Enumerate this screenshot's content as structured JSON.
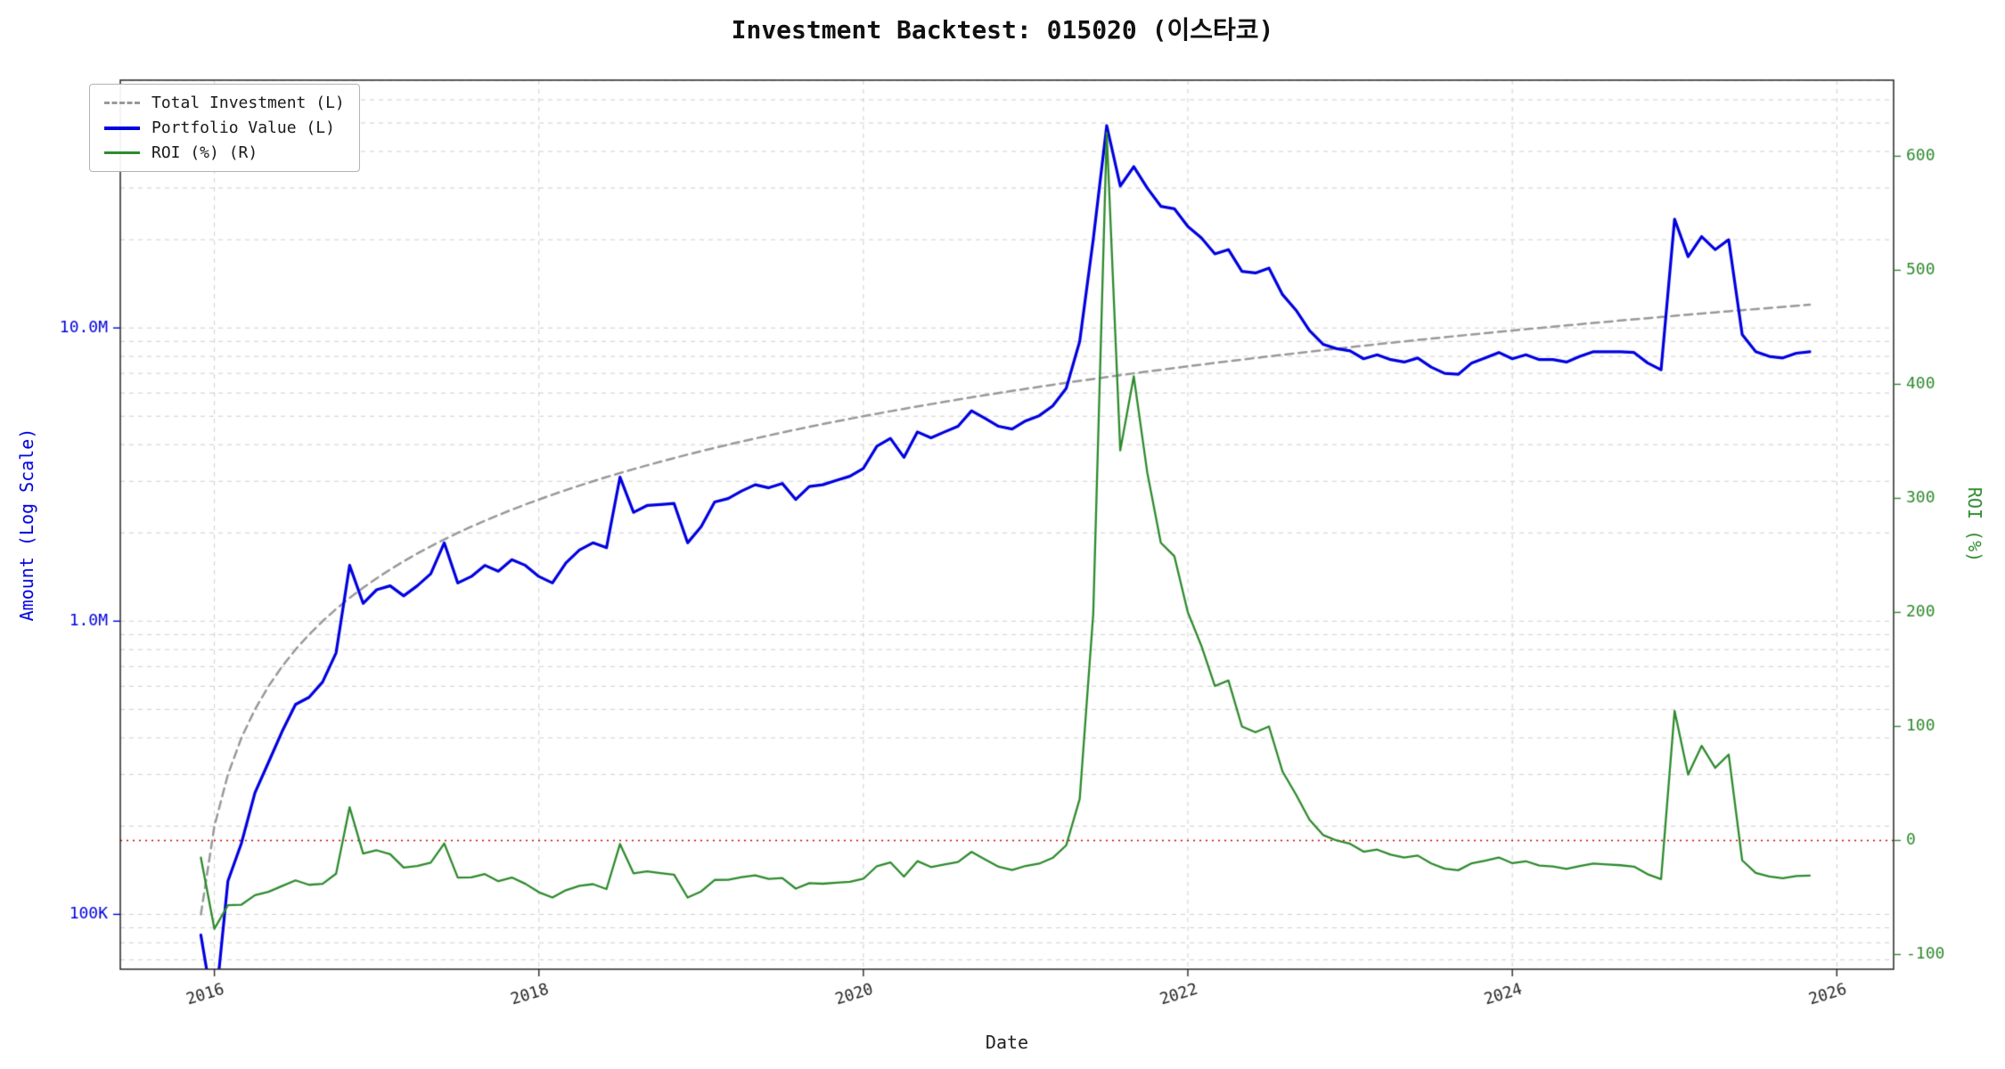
{
  "chart_data": {
    "type": "line",
    "title": "Investment Backtest: 015020 (이스타코)",
    "xlabel": "Date",
    "ylabel_left": "Amount (Log Scale)",
    "ylabel_right": "ROI (%)",
    "x_start": 2015.9167,
    "x_step": 0.0833333,
    "xlim": [
      2015.42,
      2026.35
    ],
    "ylim_left": [
      0.065,
      70
    ],
    "ylim_right": [
      -112.9,
      666.7
    ],
    "left_axis_units": "millions (log scale)",
    "grid": "on",
    "grid_color": "#cfcfcf",
    "axis_left_color": "#0000e0",
    "axis_right_color": "#2e8b2e",
    "spine_color": "#262626",
    "x_tick_color": "#262626",
    "zero_line": {
      "value": 0,
      "color": "#cc0000"
    },
    "legend_position": "upper-left",
    "x_ticks": [
      {
        "value": 2016,
        "label": "2016"
      },
      {
        "value": 2018,
        "label": "2018"
      },
      {
        "value": 2020,
        "label": "2020"
      },
      {
        "value": 2022,
        "label": "2022"
      },
      {
        "value": 2024,
        "label": "2024"
      },
      {
        "value": 2026,
        "label": "2026"
      }
    ],
    "left_ticks": [
      {
        "value": 0.1,
        "label": "100K"
      },
      {
        "value": 1.0,
        "label": "1.0M"
      },
      {
        "value": 10.0,
        "label": "10.0M"
      }
    ],
    "right_ticks": [
      {
        "value": -100,
        "label": "-100"
      },
      {
        "value": 0,
        "label": "0"
      },
      {
        "value": 100,
        "label": "100"
      },
      {
        "value": 200,
        "label": "200"
      },
      {
        "value": 300,
        "label": "300"
      },
      {
        "value": 400,
        "label": "400"
      },
      {
        "value": 500,
        "label": "500"
      },
      {
        "value": 600,
        "label": "600"
      }
    ],
    "series": [
      {
        "name": "Total Investment (L)",
        "axis": "left",
        "color": "#999999",
        "dash": [
          9,
          6
        ],
        "width": 2.5,
        "values": [
          0.1,
          0.2,
          0.3,
          0.4,
          0.5,
          0.6,
          0.7,
          0.8,
          0.9,
          1.0,
          1.1,
          1.2,
          1.3,
          1.4,
          1.5,
          1.6,
          1.7,
          1.8,
          1.9,
          2.0,
          2.1,
          2.2,
          2.3,
          2.4,
          2.5,
          2.6,
          2.7,
          2.8,
          2.9,
          3.0,
          3.1,
          3.2,
          3.3,
          3.4,
          3.5,
          3.6,
          3.7,
          3.8,
          3.9,
          4.0,
          4.1,
          4.2,
          4.3,
          4.4,
          4.5,
          4.6,
          4.7,
          4.8,
          4.9,
          5.0,
          5.1,
          5.2,
          5.3,
          5.4,
          5.5,
          5.6,
          5.7,
          5.8,
          5.9,
          6.0,
          6.1,
          6.2,
          6.3,
          6.4,
          6.5,
          6.6,
          6.7,
          6.8,
          6.9,
          7.0,
          7.1,
          7.2,
          7.3,
          7.4,
          7.5,
          7.6,
          7.7,
          7.8,
          7.9,
          8.0,
          8.1,
          8.2,
          8.3,
          8.4,
          8.5,
          8.6,
          8.7,
          8.8,
          8.9,
          9.0,
          9.1,
          9.2,
          9.3,
          9.4,
          9.5,
          9.6,
          9.7,
          9.8,
          9.9,
          10.0,
          10.1,
          10.2,
          10.3,
          10.4,
          10.5,
          10.6,
          10.7,
          10.8,
          10.9,
          11.0,
          11.1,
          11.2,
          11.3,
          11.4,
          11.5,
          11.6,
          11.7,
          11.8,
          11.9,
          12.0
        ]
      },
      {
        "name": "Portfolio Value (L)",
        "axis": "left",
        "color": "#0000e0",
        "dash": [],
        "width": 3.2,
        "values": [
          0.085,
          0.045,
          0.13,
          0.175,
          0.26,
          0.33,
          0.42,
          0.52,
          0.55,
          0.62,
          0.78,
          1.55,
          1.15,
          1.28,
          1.32,
          1.22,
          1.32,
          1.45,
          1.85,
          1.35,
          1.42,
          1.55,
          1.48,
          1.62,
          1.55,
          1.42,
          1.35,
          1.58,
          1.75,
          1.85,
          1.78,
          3.1,
          2.35,
          2.48,
          2.5,
          2.52,
          1.85,
          2.1,
          2.55,
          2.62,
          2.78,
          2.92,
          2.85,
          2.95,
          2.6,
          2.88,
          2.92,
          3.02,
          3.12,
          3.32,
          3.95,
          4.2,
          3.62,
          4.42,
          4.22,
          4.42,
          4.62,
          5.22,
          4.92,
          4.62,
          4.52,
          4.82,
          5.02,
          5.42,
          6.22,
          9.0,
          20.0,
          49.0,
          30.5,
          35.5,
          30.0,
          26.0,
          25.5,
          22.2,
          20.3,
          17.9,
          18.5,
          15.6,
          15.4,
          16.0,
          13.0,
          11.5,
          9.8,
          8.8,
          8.5,
          8.35,
          7.85,
          8.1,
          7.8,
          7.65,
          7.9,
          7.35,
          7.0,
          6.95,
          7.6,
          7.9,
          8.25,
          7.85,
          8.1,
          7.8,
          7.8,
          7.65,
          8.0,
          8.3,
          8.3,
          8.3,
          8.25,
          7.6,
          7.2,
          23.5,
          17.5,
          20.5,
          18.5,
          20.0,
          9.5,
          8.3,
          8.0,
          7.9,
          8.2,
          8.3
        ]
      },
      {
        "name": "ROI (%) (R)",
        "axis": "right",
        "color": "#2e8b2e",
        "dash": [],
        "width": 2.3,
        "values": [
          -15.0,
          -77.5,
          -56.7,
          -56.3,
          -48.0,
          -45.0,
          -40.0,
          -35.0,
          -38.9,
          -38.0,
          -29.1,
          29.2,
          -11.5,
          -8.6,
          -12.0,
          -23.8,
          -22.4,
          -19.4,
          -2.6,
          -32.5,
          -32.4,
          -29.5,
          -35.7,
          -32.5,
          -38.0,
          -45.4,
          -50.0,
          -43.6,
          -39.7,
          -38.3,
          -42.6,
          -3.1,
          -28.8,
          -27.1,
          -28.6,
          -30.0,
          -50.0,
          -44.7,
          -34.6,
          -34.5,
          -32.2,
          -30.5,
          -33.7,
          -33.0,
          -42.2,
          -37.4,
          -37.9,
          -37.1,
          -36.3,
          -33.6,
          -22.5,
          -19.2,
          -31.7,
          -18.1,
          -23.3,
          -21.1,
          -18.9,
          -10.0,
          -16.6,
          -23.0,
          -25.9,
          -22.3,
          -20.3,
          -15.3,
          -4.3,
          36.4,
          198.5,
          620.6,
          342.0,
          407.1,
          322.5,
          261.1,
          249.3,
          200.0,
          170.7,
          135.5,
          140.3,
          100.0,
          94.9,
          100.0,
          60.5,
          40.2,
          18.1,
          4.8,
          0.0,
          -2.9,
          -9.8,
          -8.0,
          -12.4,
          -15.0,
          -13.2,
          -20.1,
          -24.7,
          -26.1,
          -20.0,
          -17.7,
          -14.9,
          -19.9,
          -18.2,
          -22.0,
          -22.8,
          -25.0,
          -22.3,
          -20.2,
          -21.0,
          -21.7,
          -22.9,
          -29.6,
          -33.9,
          113.6,
          57.7,
          83.0,
          63.7,
          75.4,
          -17.4,
          -28.4,
          -31.6,
          -33.1,
          -31.1,
          -30.8
        ]
      }
    ]
  }
}
